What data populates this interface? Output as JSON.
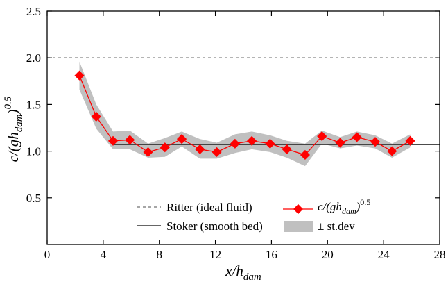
{
  "chart_data": {
    "type": "line",
    "xlabel": {
      "base": "x/h",
      "sub": "dam"
    },
    "ylabel": {
      "base": "c/(gh",
      "sub": "dam",
      "close": ")",
      "sup": "0.5"
    },
    "xlim": [
      0,
      28
    ],
    "ylim": [
      0,
      2.5
    ],
    "xticks": [
      0,
      4,
      8,
      12,
      16,
      20,
      24,
      28
    ],
    "yticks": [
      0.5,
      1.0,
      1.5,
      2.0,
      2.5
    ],
    "xtick_labels": [
      "0",
      "4",
      "8",
      "12",
      "16",
      "20",
      "24",
      "28"
    ],
    "ytick_labels": [
      "0.5",
      "1.0",
      "1.5",
      "2.0",
      "2.5"
    ],
    "ritter": {
      "name": "Ritter (ideal fluid)",
      "y": 2.0,
      "color": "#888888"
    },
    "stoker": {
      "name": "Stoker (smooth bed)",
      "x_start": 4.6,
      "y": 1.07,
      "color": "#333333"
    },
    "series": {
      "name_parts": {
        "base": "c/(gh",
        "sub": "dam",
        "close": ")",
        "sup": "0.5"
      },
      "color": "#ff0000",
      "x": [
        2.3,
        3.5,
        4.7,
        5.9,
        7.2,
        8.4,
        9.6,
        10.9,
        12.1,
        13.4,
        14.6,
        15.9,
        17.1,
        18.4,
        19.6,
        20.9,
        22.1,
        23.4,
        24.6,
        25.9
      ],
      "y": [
        1.81,
        1.37,
        1.11,
        1.12,
        0.99,
        1.04,
        1.13,
        1.02,
        0.99,
        1.08,
        1.11,
        1.08,
        1.02,
        0.96,
        1.16,
        1.09,
        1.15,
        1.1,
        1.0,
        1.11
      ]
    },
    "stdev_band": {
      "name": "± st.dev",
      "color": "#c0c0c0",
      "x": [
        2.3,
        3.5,
        4.7,
        5.9,
        7.2,
        8.4,
        9.6,
        10.9,
        12.1,
        13.4,
        14.6,
        15.9,
        17.1,
        18.4,
        19.6,
        20.9,
        22.1,
        23.4,
        24.6,
        25.9
      ],
      "upper": [
        1.96,
        1.5,
        1.21,
        1.22,
        1.08,
        1.14,
        1.21,
        1.13,
        1.09,
        1.18,
        1.21,
        1.17,
        1.11,
        1.08,
        1.22,
        1.15,
        1.21,
        1.17,
        1.08,
        1.18
      ],
      "lower": [
        1.66,
        1.24,
        1.02,
        1.02,
        0.93,
        0.94,
        1.05,
        0.92,
        0.92,
        0.98,
        1.02,
        0.99,
        0.93,
        0.84,
        1.08,
        1.03,
        1.06,
        1.03,
        0.93,
        1.04
      ]
    },
    "legend": {
      "placement": "bottom"
    },
    "grid": false
  }
}
